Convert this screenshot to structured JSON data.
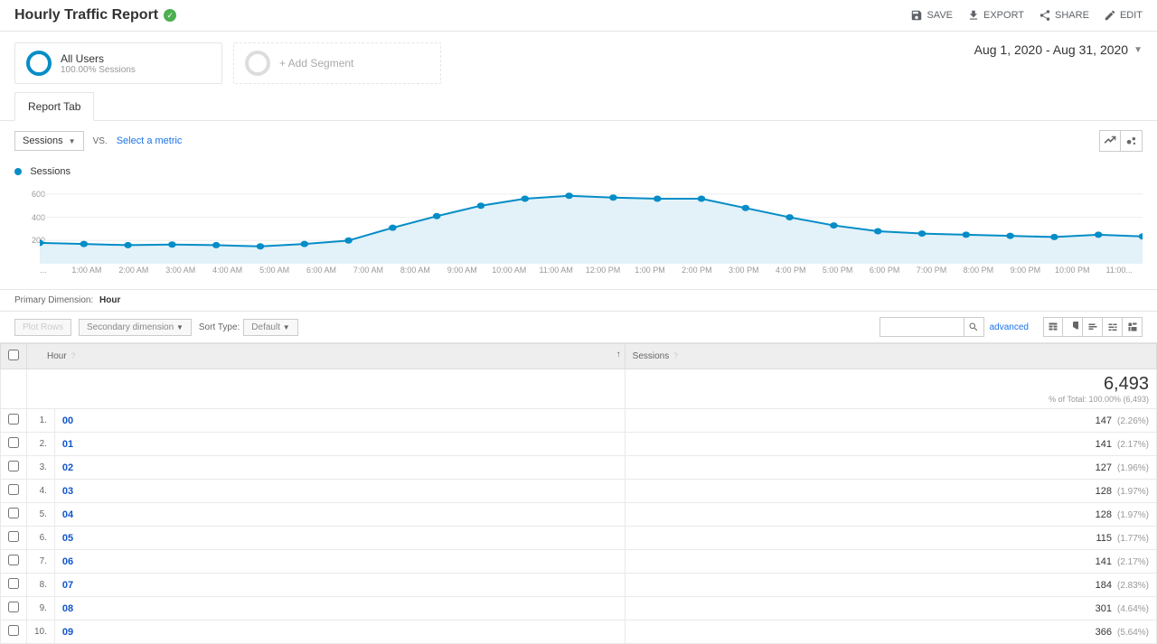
{
  "header": {
    "title": "Hourly Traffic Report",
    "actions": {
      "save": "SAVE",
      "export": "EXPORT",
      "share": "SHARE",
      "edit": "EDIT"
    }
  },
  "segments": {
    "all_users": {
      "title": "All Users",
      "sub": "100.00% Sessions"
    },
    "add": "+ Add Segment"
  },
  "date_range": "Aug 1, 2020 - Aug 31, 2020",
  "tabs": {
    "report": "Report Tab"
  },
  "metric_bar": {
    "primary": "Sessions",
    "vs": "VS.",
    "select_metric": "Select a metric"
  },
  "chart": {
    "legend": "Sessions",
    "type": "area",
    "color": "#058dc7",
    "fill": "#e3f1f8",
    "grid_color": "#eeeeee",
    "y_ticks": [
      "600",
      "400",
      "200"
    ],
    "y_max": 700,
    "x_labels": [
      "...",
      "1:00 AM",
      "2:00 AM",
      "3:00 AM",
      "4:00 AM",
      "5:00 AM",
      "6:00 AM",
      "7:00 AM",
      "8:00 AM",
      "9:00 AM",
      "10:00 AM",
      "11:00 AM",
      "12:00 PM",
      "1:00 PM",
      "2:00 PM",
      "3:00 PM",
      "4:00 PM",
      "5:00 PM",
      "6:00 PM",
      "7:00 PM",
      "8:00 PM",
      "9:00 PM",
      "10:00 PM",
      "11:00..."
    ],
    "values": [
      180,
      170,
      160,
      165,
      160,
      150,
      170,
      200,
      310,
      410,
      500,
      560,
      585,
      570,
      560,
      560,
      480,
      400,
      330,
      280,
      260,
      250,
      240,
      230,
      250,
      235
    ]
  },
  "dimension": {
    "label": "Primary Dimension:",
    "value": "Hour"
  },
  "table_controls": {
    "plot_rows": "Plot Rows",
    "secondary_dim": "Secondary dimension",
    "sort_type_label": "Sort Type:",
    "sort_type_value": "Default",
    "advanced": "advanced"
  },
  "table": {
    "columns": {
      "hour": "Hour",
      "sessions": "Sessions"
    },
    "summary": {
      "total": "6,493",
      "sub": "% of Total: 100.00% (6,493)"
    },
    "rows": [
      {
        "n": "1.",
        "hour": "00",
        "val": "147",
        "pct": "(2.26%)"
      },
      {
        "n": "2.",
        "hour": "01",
        "val": "141",
        "pct": "(2.17%)"
      },
      {
        "n": "3.",
        "hour": "02",
        "val": "127",
        "pct": "(1.96%)"
      },
      {
        "n": "4.",
        "hour": "03",
        "val": "128",
        "pct": "(1.97%)"
      },
      {
        "n": "5.",
        "hour": "04",
        "val": "128",
        "pct": "(1.97%)"
      },
      {
        "n": "6.",
        "hour": "05",
        "val": "115",
        "pct": "(1.77%)"
      },
      {
        "n": "7.",
        "hour": "06",
        "val": "141",
        "pct": "(2.17%)"
      },
      {
        "n": "8.",
        "hour": "07",
        "val": "184",
        "pct": "(2.83%)"
      },
      {
        "n": "9.",
        "hour": "08",
        "val": "301",
        "pct": "(4.64%)"
      },
      {
        "n": "10.",
        "hour": "09",
        "val": "366",
        "pct": "(5.64%)"
      }
    ]
  }
}
